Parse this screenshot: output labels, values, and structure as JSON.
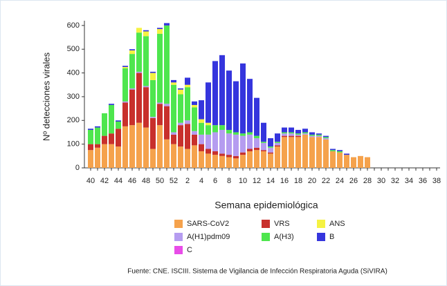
{
  "chart_data": {
    "type": "stacked_bar",
    "y_label": "Nº detecciones virales",
    "x_label": "Semana epidemiológica",
    "source": "Fuente: CNE. ISCIII. Sistema de Vigilancia de Infección Respiratoria Aguda (SiVIRA)",
    "categories": [
      "40",
      null,
      "42",
      null,
      "44",
      null,
      "46",
      null,
      "48",
      null,
      "50",
      null,
      "52",
      null,
      "2",
      null,
      "4",
      null,
      "6",
      null,
      "8",
      null,
      "10",
      null,
      "12",
      null,
      "14",
      null,
      "16",
      null,
      "18",
      null,
      "20",
      null,
      "22",
      null,
      "24",
      null,
      "26",
      null,
      "28",
      null,
      "30",
      null,
      "32",
      null,
      "34",
      null,
      "36",
      null,
      "38"
    ],
    "ylim": [
      0,
      620
    ],
    "yticks": [
      0,
      100,
      200,
      300,
      400,
      500,
      600
    ],
    "series": [
      {
        "name": "SARS-CoV2",
        "color": "#f5a24c",
        "values": [
          75,
          85,
          100,
          100,
          90,
          175,
          180,
          190,
          170,
          80,
          180,
          120,
          100,
          90,
          80,
          95,
          70,
          60,
          55,
          50,
          45,
          40,
          55,
          70,
          75,
          70,
          60,
          90,
          130,
          130,
          130,
          140,
          130,
          130,
          120,
          70,
          65,
          55,
          45,
          50,
          45,
          0,
          0,
          0,
          0,
          0,
          0,
          0,
          0,
          0,
          0
        ]
      },
      {
        "name": "VRS",
        "color": "#c8302c",
        "values": [
          25,
          15,
          35,
          45,
          75,
          100,
          150,
          210,
          170,
          130,
          90,
          140,
          40,
          90,
          105,
          45,
          30,
          20,
          15,
          10,
          10,
          10,
          10,
          10,
          10,
          5,
          5,
          5,
          5,
          5,
          5,
          0,
          0,
          0,
          0,
          0,
          0,
          0,
          0,
          0,
          0,
          0,
          0,
          0,
          0,
          0,
          0,
          0,
          0,
          0,
          0
        ]
      },
      {
        "name": "A(H1)pdm09",
        "color": "#b59cf0",
        "values": [
          0,
          0,
          0,
          0,
          0,
          5,
          5,
          5,
          5,
          5,
          5,
          10,
          10,
          10,
          15,
          15,
          40,
          60,
          80,
          100,
          90,
          90,
          70,
          60,
          40,
          30,
          20,
          10,
          10,
          10,
          5,
          5,
          5,
          5,
          5,
          0,
          0,
          0,
          0,
          0,
          0,
          0,
          0,
          0,
          0,
          0,
          0,
          0,
          0,
          0,
          0
        ]
      },
      {
        "name": "A(H3)",
        "color": "#4ee64e",
        "values": [
          60,
          70,
          95,
          120,
          30,
          140,
          145,
          165,
          210,
          155,
          290,
          330,
          200,
          120,
          140,
          100,
          50,
          40,
          30,
          20,
          15,
          10,
          10,
          10,
          10,
          5,
          5,
          5,
          5,
          5,
          5,
          5,
          5,
          5,
          5,
          5,
          5,
          0,
          0,
          0,
          0,
          0,
          0,
          0,
          0,
          0,
          0,
          0,
          0,
          0,
          0
        ]
      },
      {
        "name": "ANS",
        "color": "#f5f242",
        "values": [
          0,
          0,
          0,
          0,
          0,
          5,
          15,
          20,
          20,
          30,
          20,
          0,
          10,
          20,
          10,
          10,
          15,
          10,
          0,
          0,
          0,
          0,
          0,
          0,
          0,
          0,
          0,
          0,
          0,
          0,
          0,
          0,
          0,
          0,
          0,
          0,
          0,
          0,
          0,
          0,
          0,
          0,
          0,
          0,
          0,
          0,
          0,
          0,
          0,
          0,
          0
        ]
      },
      {
        "name": "B",
        "color": "#3535dd",
        "values": [
          5,
          5,
          0,
          5,
          5,
          5,
          5,
          0,
          5,
          5,
          5,
          10,
          10,
          5,
          30,
          15,
          80,
          170,
          270,
          295,
          250,
          215,
          295,
          225,
          160,
          80,
          35,
          35,
          20,
          20,
          15,
          15,
          10,
          5,
          5,
          5,
          5,
          5,
          0,
          0,
          0,
          0,
          0,
          0,
          0,
          0,
          0,
          0,
          0,
          0,
          0
        ]
      },
      {
        "name": "C",
        "color": "#e84ce8",
        "values": [
          0,
          0,
          0,
          0,
          0,
          0,
          0,
          0,
          0,
          0,
          0,
          0,
          0,
          0,
          0,
          0,
          0,
          0,
          0,
          0,
          0,
          0,
          0,
          0,
          0,
          0,
          0,
          0,
          0,
          0,
          0,
          0,
          0,
          0,
          0,
          0,
          0,
          0,
          0,
          0,
          0,
          0,
          0,
          0,
          0,
          0,
          0,
          0,
          0,
          0,
          0
        ]
      }
    ]
  }
}
